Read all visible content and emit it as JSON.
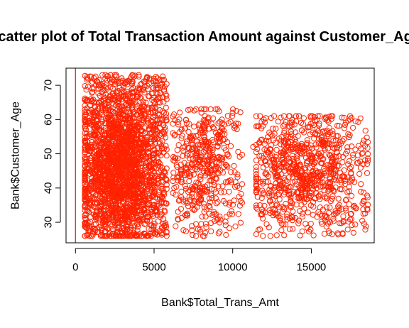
{
  "chart_data": {
    "type": "scatter",
    "title": "Scatter plot of Total Transaction Amount against Customer_Age",
    "xlabel": "Bank$Total_Trans_Amt",
    "ylabel": "Bank$Customer_Age",
    "xlim": [
      -600,
      19000
    ],
    "ylim": [
      24,
      75
    ],
    "xticks": [
      "0",
      "5000",
      "10000",
      "15000"
    ],
    "yticks": [
      "30",
      "40",
      "50",
      "60",
      "70"
    ],
    "marker": "open-circle",
    "color": "#ff2200",
    "vline_x": 0,
    "grid": false,
    "legend": "none",
    "clusters": [
      {
        "x_range": [
          600,
          5800
        ],
        "y_range": [
          26,
          73
        ],
        "center": [
          2800,
          46
        ],
        "count": 2400
      },
      {
        "x_range": [
          6200,
          10600
        ],
        "y_range": [
          26,
          63
        ],
        "center": [
          8000,
          47
        ],
        "count": 480
      },
      {
        "x_range": [
          11500,
          18600
        ],
        "y_range": [
          26,
          61
        ],
        "center": [
          14500,
          46
        ],
        "count": 850
      }
    ],
    "notable_points": [
      {
        "x": 1900,
        "y": 73
      },
      {
        "x": 1300,
        "y": 70
      },
      {
        "x": 18300,
        "y": 47
      },
      {
        "x": 10300,
        "y": 44
      },
      {
        "x": 11300,
        "y": 52
      }
    ]
  }
}
